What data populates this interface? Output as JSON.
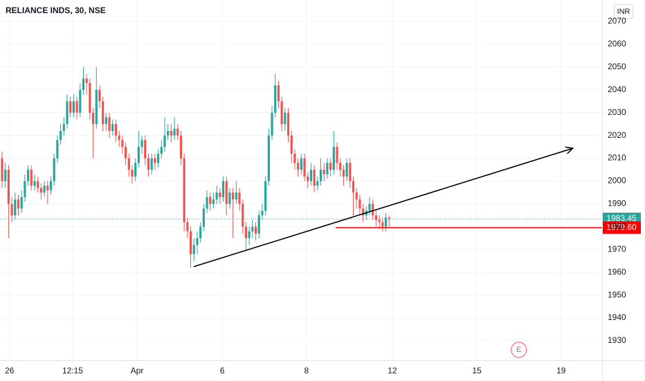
{
  "chart_data": {
    "type": "candlestick",
    "title": "RELIANCE INDS, 30, NSE",
    "currency": "INR",
    "up_color": "#26a69a",
    "down_color": "#ef5350",
    "grid": true,
    "x": [
      0,
      1,
      2,
      3,
      4,
      5,
      6,
      7,
      8,
      9,
      10,
      11,
      12,
      13,
      14,
      15,
      16,
      17,
      18,
      19,
      20,
      21,
      22,
      23,
      24,
      25,
      26,
      27,
      28,
      29,
      30,
      31,
      32,
      33,
      34,
      35,
      36,
      37,
      38,
      39,
      40,
      41,
      42,
      43,
      44,
      45,
      46,
      47,
      48,
      49,
      50,
      51,
      52,
      53,
      54,
      55,
      56,
      57,
      58,
      59,
      60,
      61,
      62,
      63,
      64,
      65,
      66,
      67,
      68,
      69,
      70,
      71,
      72,
      73,
      74,
      75,
      76,
      77,
      78,
      79,
      80,
      81,
      82,
      83,
      84,
      85,
      86,
      87,
      88,
      89,
      90,
      91,
      92,
      93,
      94,
      95,
      96,
      97,
      98,
      99,
      100,
      101,
      102,
      103,
      104,
      105,
      106,
      107,
      108,
      109,
      110,
      111,
      112,
      113,
      114,
      115,
      116,
      117,
      118,
      119
    ],
    "open": [
      2010,
      2000,
      2005,
      1990,
      1985,
      1992,
      1988,
      1993,
      2000,
      2005,
      1998,
      2000,
      1997,
      1995,
      1998,
      1996,
      2000,
      2010,
      2018,
      2022,
      2025,
      2035,
      2030,
      2035,
      2030,
      2040,
      2045,
      2043,
      2030,
      2025,
      2040,
      2035,
      2025,
      2028,
      2022,
      2025,
      2020,
      2018,
      2015,
      2010,
      2005,
      2002,
      2008,
      2015,
      2018,
      2010,
      2005,
      2010,
      2008,
      2012,
      2015,
      2020,
      2022,
      2020,
      2023,
      2020,
      2010,
      1982,
      1978,
      1968,
      1972,
      1975,
      1980,
      1988,
      1993,
      1990,
      1992,
      1995,
      1993,
      2000,
      1990,
      1995,
      1992,
      1995,
      1990,
      1980,
      1975,
      1978,
      1980,
      1977,
      1985,
      1987,
      2000,
      2020,
      2030,
      2042,
      2035,
      2025,
      2030,
      2020,
      2012,
      2008,
      2005,
      2010,
      2002,
      2000,
      2005,
      1998,
      2000,
      2005,
      2003,
      2008,
      2005,
      2015,
      2008,
      2005,
      2002,
      2008,
      2000,
      1995,
      1992,
      1988,
      1985,
      1987,
      1990,
      1985,
      1983,
      1982,
      1980,
      1984
    ],
    "high": [
      2013,
      2008,
      2007,
      1993,
      1995,
      1994,
      1996,
      2003,
      2007,
      2007,
      2003,
      2002,
      1999,
      2000,
      2000,
      2002,
      2012,
      2020,
      2025,
      2028,
      2038,
      2037,
      2038,
      2037,
      2043,
      2050,
      2047,
      2045,
      2032,
      2050,
      2042,
      2037,
      2030,
      2030,
      2027,
      2027,
      2022,
      2020,
      2017,
      2012,
      2007,
      2010,
      2022,
      2020,
      2020,
      2012,
      2012,
      2012,
      2014,
      2018,
      2028,
      2025,
      2025,
      2028,
      2025,
      2022,
      2012,
      1984,
      1980,
      1975,
      1978,
      1982,
      1990,
      1996,
      1995,
      1995,
      1998,
      1997,
      2002,
      2002,
      1997,
      1997,
      2000,
      1997,
      1992,
      1982,
      1980,
      1983,
      1982,
      1987,
      1990,
      2002,
      2023,
      2033,
      2047,
      2044,
      2037,
      2032,
      2032,
      2022,
      2014,
      2010,
      2012,
      2012,
      2004,
      2008,
      2007,
      2002,
      2010,
      2008,
      2010,
      2010,
      2022,
      2017,
      2010,
      2007,
      2010,
      2010,
      2002,
      1997,
      1994,
      1990,
      1989,
      1993,
      1992,
      1987,
      1985,
      1984,
      1986,
      1985
    ],
    "low": [
      1997,
      1997,
      1975,
      1982,
      1983,
      1985,
      1986,
      1991,
      1998,
      1996,
      1996,
      1995,
      1992,
      1993,
      1990,
      1994,
      1998,
      2008,
      2016,
      2020,
      2023,
      2028,
      2028,
      2027,
      2028,
      2038,
      2038,
      2027,
      2010,
      2023,
      2032,
      2022,
      2022,
      2019,
      2020,
      2017,
      2015,
      2012,
      2007,
      2002,
      1999,
      2000,
      2006,
      2012,
      2007,
      2002,
      2003,
      2005,
      2006,
      2010,
      2013,
      2018,
      2017,
      2018,
      2018,
      2007,
      1978,
      1975,
      1962,
      1965,
      1968,
      1973,
      1978,
      1986,
      1987,
      1988,
      1990,
      1990,
      1991,
      1985,
      1988,
      1975,
      1990,
      1987,
      1977,
      1970,
      1972,
      1975,
      1974,
      1975,
      1983,
      1985,
      1998,
      2018,
      2028,
      2032,
      2022,
      2022,
      2017,
      2008,
      2005,
      2002,
      2003,
      2000,
      1997,
      1998,
      1995,
      1996,
      1998,
      2000,
      2001,
      2002,
      2003,
      2005,
      2002,
      1998,
      2000,
      1997,
      1985,
      1988,
      1985,
      1982,
      1983,
      1985,
      1983,
      1980,
      1979,
      1978,
      1978,
      1980
    ],
    "close": [
      2000,
      2005,
      1990,
      1985,
      1992,
      1988,
      1993,
      2000,
      2005,
      1998,
      2000,
      1997,
      1995,
      1998,
      1996,
      2000,
      2010,
      2018,
      2022,
      2025,
      2035,
      2030,
      2035,
      2030,
      2040,
      2045,
      2043,
      2030,
      2025,
      2040,
      2035,
      2025,
      2028,
      2022,
      2025,
      2020,
      2018,
      2015,
      2010,
      2005,
      2002,
      2008,
      2015,
      2018,
      2010,
      2005,
      2010,
      2008,
      2012,
      2015,
      2020,
      2022,
      2020,
      2023,
      2020,
      2010,
      1982,
      1978,
      1968,
      1972,
      1975,
      1980,
      1988,
      1993,
      1990,
      1992,
      1995,
      1993,
      2000,
      1990,
      1995,
      1992,
      1995,
      1990,
      1980,
      1975,
      1978,
      1980,
      1977,
      1985,
      1987,
      2000,
      2020,
      2030,
      2042,
      2035,
      2025,
      2030,
      2020,
      2012,
      2008,
      2005,
      2010,
      2002,
      2000,
      2005,
      1998,
      2000,
      2005,
      2003,
      2008,
      2005,
      2015,
      2008,
      2005,
      2002,
      2008,
      2000,
      1995,
      1992,
      1988,
      1985,
      1987,
      1990,
      1985,
      1983,
      1982,
      1980,
      1984,
      1983.45
    ],
    "xlim": [
      -0.64,
      184.5
    ],
    "xticks": [
      {
        "value": 2.3,
        "label": "26"
      },
      {
        "value": 21.7,
        "label": "12:15"
      },
      {
        "value": 41.5,
        "label": "Apr"
      },
      {
        "value": 67.7,
        "label": "6"
      },
      {
        "value": 93.6,
        "label": "8"
      },
      {
        "value": 120,
        "label": "12"
      },
      {
        "value": 146,
        "label": "15"
      },
      {
        "value": 171.9,
        "label": "19"
      }
    ],
    "ylim": [
      1921.5,
      2079.4
    ],
    "yticks": [
      1930,
      1940,
      1950,
      1960,
      1970,
      1980,
      1990,
      2000,
      2010,
      2020,
      2030,
      2040,
      2050,
      2060,
      2070
    ],
    "last_price": 1983.45,
    "level": {
      "value": 1979.6,
      "label": "1979.60",
      "x_start": 102.6
    },
    "trendline": {
      "x": [
        58.9,
        175.5
      ],
      "y": [
        1962.5,
        2014.4
      ]
    },
    "event_marker": {
      "label": "E",
      "x": 158.9
    }
  }
}
